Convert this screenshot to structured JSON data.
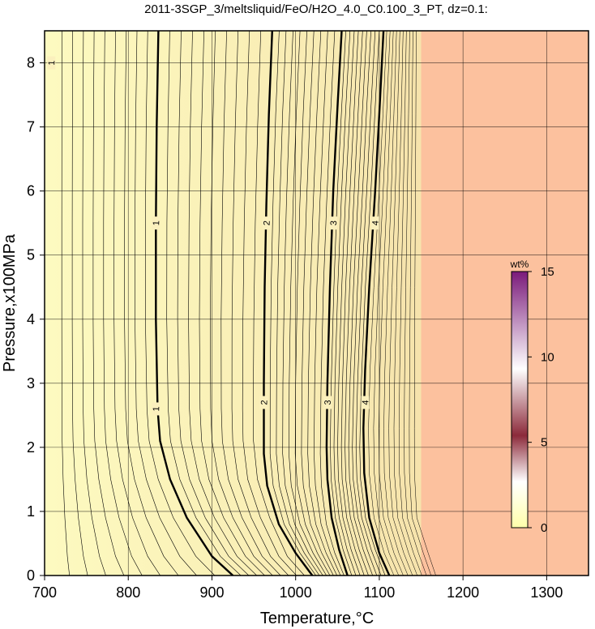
{
  "chart_data": {
    "type": "contour",
    "title": "2011-3SGP_3/meltsliquid/FeO/H2O_4.0_C0.100_3_PT, dz=0.1:",
    "xlabel": "Temperature,°C",
    "ylabel": "Pressure,x100MPa",
    "xlim": [
      700,
      1350
    ],
    "ylim": [
      0,
      8.5
    ],
    "xticks": [
      "700",
      "800",
      "900",
      "1000",
      "1100",
      "1200",
      "1300"
    ],
    "yticks": [
      "0",
      "1",
      "2",
      "3",
      "4",
      "5",
      "6",
      "7",
      "8"
    ],
    "grid": true,
    "contour_interval": 0.1,
    "labeled_contours": [
      {
        "level": "1",
        "points": [
          [
            925,
            0
          ],
          [
            900,
            0.3
          ],
          [
            870,
            0.9
          ],
          [
            850,
            1.5
          ],
          [
            838,
            2.1
          ],
          [
            835,
            2.6
          ],
          [
            833,
            4.0
          ],
          [
            833,
            5.5
          ],
          [
            834,
            7.0
          ],
          [
            836,
            8.5
          ]
        ]
      },
      {
        "level": "2",
        "points": [
          [
            1020,
            0
          ],
          [
            1000,
            0.35
          ],
          [
            980,
            0.8
          ],
          [
            966,
            1.4
          ],
          [
            962,
            1.9
          ],
          [
            962,
            3.0
          ],
          [
            963,
            4.5
          ],
          [
            965,
            5.8
          ],
          [
            968,
            7.2
          ],
          [
            972,
            8.5
          ]
        ]
      },
      {
        "level": "3",
        "points": [
          [
            1062,
            0
          ],
          [
            1052,
            0.4
          ],
          [
            1043,
            0.9
          ],
          [
            1038,
            1.5
          ],
          [
            1037,
            2.0
          ],
          [
            1038,
            3.0
          ],
          [
            1041,
            4.5
          ],
          [
            1045,
            6.0
          ],
          [
            1050,
            7.3
          ],
          [
            1055,
            8.5
          ]
        ]
      },
      {
        "level": "4",
        "points": [
          [
            1112,
            0
          ],
          [
            1100,
            0.35
          ],
          [
            1088,
            0.9
          ],
          [
            1082,
            1.6
          ],
          [
            1081,
            2.3
          ],
          [
            1083,
            3.2
          ],
          [
            1088,
            4.5
          ],
          [
            1095,
            6.0
          ],
          [
            1100,
            7.2
          ],
          [
            1105,
            8.5
          ]
        ]
      }
    ],
    "label_positions": [
      {
        "level": "1",
        "x": 833,
        "y": 5.5
      },
      {
        "level": "1",
        "x": 833,
        "y": 2.6
      },
      {
        "level": "2",
        "x": 965,
        "y": 5.5
      },
      {
        "level": "2",
        "x": 962,
        "y": 2.7
      },
      {
        "level": "3",
        "x": 1045,
        "y": 5.5
      },
      {
        "level": "3",
        "x": 1038,
        "y": 2.7
      },
      {
        "level": "4",
        "x": 1095,
        "y": 5.5
      },
      {
        "level": "4",
        "x": 1083,
        "y": 2.7
      },
      {
        "level": "1",
        "x": 708,
        "y": 8.0
      }
    ],
    "saturated_boundary_x": 1150,
    "colors": {
      "low": "#fdfac0",
      "mid": "#f4d9a2",
      "saturated": "#fcc19e"
    },
    "colorbar": {
      "label": "wt%",
      "range": [
        0,
        15
      ],
      "ticks": [
        "0",
        "5",
        "10",
        "15"
      ],
      "stops": [
        "#ffffaa",
        "#ffffff",
        "#8c2a3a",
        "#ffffff",
        "#7a1a7a"
      ]
    }
  }
}
